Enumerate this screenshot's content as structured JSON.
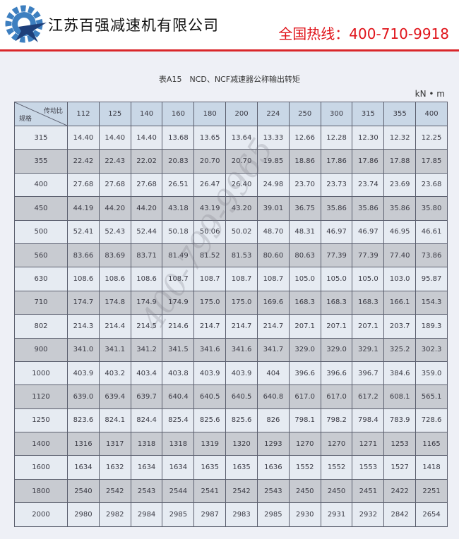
{
  "header": {
    "company": "江苏百强减速机有限公司",
    "hotline": "全国热线：400-710-9918",
    "accent": "#e0141b"
  },
  "document": {
    "title": "表A15　NCD、NCF减速器公称输出转矩",
    "unit": "kN • m",
    "corner_top": "传动比",
    "corner_bottom": "规格",
    "ratios": [
      "112",
      "125",
      "140",
      "160",
      "180",
      "200",
      "224",
      "250",
      "300",
      "315",
      "355",
      "400"
    ],
    "rows": [
      {
        "size": "315",
        "values": [
          "14.40",
          "14.40",
          "14.40",
          "13.68",
          "13.65",
          "13.64",
          "13.33",
          "12.66",
          "12.28",
          "12.30",
          "12.32",
          "12.25"
        ]
      },
      {
        "size": "355",
        "values": [
          "22.42",
          "22.43",
          "22.02",
          "20.83",
          "20.70",
          "20.70",
          "19.85",
          "18.86",
          "17.86",
          "17.86",
          "17.88",
          "17.85"
        ]
      },
      {
        "size": "400",
        "values": [
          "27.68",
          "27.68",
          "27.68",
          "26.51",
          "26.47",
          "26.40",
          "24.98",
          "23.70",
          "23.73",
          "23.74",
          "23.69",
          "23.68"
        ]
      },
      {
        "size": "450",
        "values": [
          "44.19",
          "44.20",
          "44.20",
          "43.18",
          "43.19",
          "43.20",
          "39.01",
          "36.75",
          "35.86",
          "35.86",
          "35.86",
          "35.80"
        ]
      },
      {
        "size": "500",
        "values": [
          "52.41",
          "52.43",
          "52.44",
          "50.18",
          "50.06",
          "50.02",
          "48.70",
          "48.31",
          "46.97",
          "46.97",
          "46.95",
          "46.61"
        ]
      },
      {
        "size": "560",
        "values": [
          "83.66",
          "83.69",
          "83.71",
          "81.49",
          "81.52",
          "81.53",
          "80.60",
          "80.63",
          "77.39",
          "77.39",
          "77.40",
          "73.86"
        ]
      },
      {
        "size": "630",
        "values": [
          "108.6",
          "108.6",
          "108.6",
          "108.7",
          "108.7",
          "108.7",
          "108.7",
          "105.0",
          "105.0",
          "105.0",
          "103.0",
          "95.87"
        ]
      },
      {
        "size": "710",
        "values": [
          "174.7",
          "174.8",
          "174.9",
          "174.9",
          "175.0",
          "175.0",
          "169.6",
          "168.3",
          "168.3",
          "168.3",
          "166.1",
          "154.3"
        ]
      },
      {
        "size": "802",
        "values": [
          "214.3",
          "214.4",
          "214.5",
          "214.6",
          "214.7",
          "214.7",
          "214.7",
          "207.1",
          "207.1",
          "207.1",
          "203.7",
          "189.3"
        ]
      },
      {
        "size": "900",
        "values": [
          "341.0",
          "341.1",
          "341.2",
          "341.5",
          "341.6",
          "341.6",
          "341.7",
          "329.0",
          "329.0",
          "329.1",
          "325.2",
          "302.3"
        ]
      },
      {
        "size": "1000",
        "values": [
          "403.9",
          "403.2",
          "403.4",
          "403.8",
          "403.9",
          "403.9",
          "404",
          "396.6",
          "396.6",
          "396.7",
          "384.6",
          "359.0"
        ]
      },
      {
        "size": "1120",
        "values": [
          "639.0",
          "639.4",
          "639.7",
          "640.4",
          "640.5",
          "640.5",
          "640.8",
          "617.0",
          "617.0",
          "617.2",
          "608.1",
          "565.1"
        ]
      },
      {
        "size": "1250",
        "values": [
          "823.6",
          "824.1",
          "824.4",
          "825.4",
          "825.6",
          "825.6",
          "826",
          "798.1",
          "798.2",
          "798.4",
          "783.9",
          "728.6"
        ]
      },
      {
        "size": "1400",
        "values": [
          "1316",
          "1317",
          "1318",
          "1318",
          "1319",
          "1320",
          "1293",
          "1270",
          "1270",
          "1271",
          "1253",
          "1165"
        ]
      },
      {
        "size": "1600",
        "values": [
          "1634",
          "1632",
          "1634",
          "1634",
          "1635",
          "1635",
          "1636",
          "1552",
          "1552",
          "1553",
          "1527",
          "1418"
        ]
      },
      {
        "size": "1800",
        "values": [
          "2540",
          "2542",
          "2543",
          "2544",
          "2541",
          "2542",
          "2543",
          "2450",
          "2450",
          "2451",
          "2422",
          "2251"
        ]
      },
      {
        "size": "2000",
        "values": [
          "2980",
          "2982",
          "2984",
          "2985",
          "2987",
          "2983",
          "2985",
          "2930",
          "2931",
          "2932",
          "2842",
          "2654"
        ]
      }
    ],
    "watermark": "400-799-9965"
  }
}
